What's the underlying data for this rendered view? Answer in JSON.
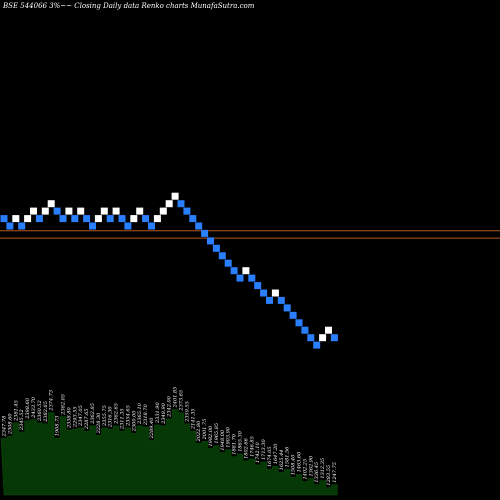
{
  "title": "BSE 544066  3%~~  Closing Daily data  Renko  charts MunafaSutra.com",
  "colors": {
    "background": "#000000",
    "up": "#ffffff",
    "down": "#2a7fff",
    "level": "#b5561e",
    "volume": "#063806"
  },
  "chart_data": {
    "type": "renko",
    "y_range": [
      1247,
      2600
    ],
    "levels": [
      2305,
      2265
    ],
    "bricks": [
      {
        "dir": "down",
        "close": 2370
      },
      {
        "dir": "down",
        "close": 2330
      },
      {
        "dir": "up",
        "close": 2370
      },
      {
        "dir": "down",
        "close": 2330
      },
      {
        "dir": "up",
        "close": 2370
      },
      {
        "dir": "up",
        "close": 2410
      },
      {
        "dir": "down",
        "close": 2370
      },
      {
        "dir": "up",
        "close": 2410
      },
      {
        "dir": "up",
        "close": 2450
      },
      {
        "dir": "down",
        "close": 2410
      },
      {
        "dir": "down",
        "close": 2370
      },
      {
        "dir": "up",
        "close": 2410
      },
      {
        "dir": "down",
        "close": 2370
      },
      {
        "dir": "up",
        "close": 2410
      },
      {
        "dir": "down",
        "close": 2370
      },
      {
        "dir": "down",
        "close": 2330
      },
      {
        "dir": "up",
        "close": 2370
      },
      {
        "dir": "up",
        "close": 2410
      },
      {
        "dir": "down",
        "close": 2370
      },
      {
        "dir": "up",
        "close": 2410
      },
      {
        "dir": "down",
        "close": 2370
      },
      {
        "dir": "down",
        "close": 2330
      },
      {
        "dir": "up",
        "close": 2370
      },
      {
        "dir": "up",
        "close": 2410
      },
      {
        "dir": "down",
        "close": 2370
      },
      {
        "dir": "down",
        "close": 2330
      },
      {
        "dir": "up",
        "close": 2370
      },
      {
        "dir": "up",
        "close": 2410
      },
      {
        "dir": "up",
        "close": 2450
      },
      {
        "dir": "up",
        "close": 2490
      },
      {
        "dir": "down",
        "close": 2450
      },
      {
        "dir": "down",
        "close": 2410
      },
      {
        "dir": "down",
        "close": 2370
      },
      {
        "dir": "down",
        "close": 2330
      },
      {
        "dir": "down",
        "close": 2290
      },
      {
        "dir": "down",
        "close": 2250
      },
      {
        "dir": "down",
        "close": 2210
      },
      {
        "dir": "down",
        "close": 2170
      },
      {
        "dir": "down",
        "close": 2130
      },
      {
        "dir": "down",
        "close": 2090
      },
      {
        "dir": "down",
        "close": 2050
      },
      {
        "dir": "up",
        "close": 2090
      },
      {
        "dir": "down",
        "close": 2050
      },
      {
        "dir": "down",
        "close": 2010
      },
      {
        "dir": "down",
        "close": 1970
      },
      {
        "dir": "down",
        "close": 1930
      },
      {
        "dir": "up",
        "close": 1970
      },
      {
        "dir": "down",
        "close": 1930
      },
      {
        "dir": "down",
        "close": 1890
      },
      {
        "dir": "down",
        "close": 1850
      },
      {
        "dir": "down",
        "close": 1810
      },
      {
        "dir": "down",
        "close": 1770
      },
      {
        "dir": "down",
        "close": 1730
      },
      {
        "dir": "down",
        "close": 1690
      },
      {
        "dir": "up",
        "close": 1730
      },
      {
        "dir": "up",
        "close": 1770
      },
      {
        "dir": "down",
        "close": 1730
      }
    ],
    "brick_labels": [
      "2347.78",
      "2308.60",
      "2381.45",
      "2345.52",
      "2398.60",
      "2433.70",
      "2360.52",
      "2382.65",
      "2374.73",
      "1908.73",
      "2382.05",
      "2338.80",
      "2293.55",
      "2347.05",
      "2287.65",
      "2362.85",
      "2228.30",
      "2355.75",
      "2316.30",
      "2362.65",
      "2311.35",
      "2354.65",
      "2300.00",
      "2365.10",
      "2318.70",
      "2289.40",
      "2331.90",
      "2348.90",
      "2342.00",
      "2401.85",
      "2373.65",
      "2359.55",
      "2141.35",
      "2022.80",
      "2001.75",
      "1982.00",
      "1965.85",
      "1948.00",
      "1903.90",
      "1881.70",
      "1865.30",
      "1802.66",
      "1746.85",
      "1742.10",
      "1713.30",
      "1674.05",
      "1647.20",
      "1625.44",
      "1581.56",
      "1508.40",
      "1463.60",
      "1402.25",
      "1362.90",
      "1336.45",
      "1312.35",
      "1283.55",
      "1247.75"
    ],
    "volume_rel": [
      0.55,
      0.62,
      0.7,
      0.66,
      0.72,
      0.78,
      0.7,
      0.74,
      0.8,
      0.6,
      0.76,
      0.68,
      0.64,
      0.7,
      0.62,
      0.72,
      0.58,
      0.7,
      0.64,
      0.72,
      0.62,
      0.7,
      0.6,
      0.72,
      0.66,
      0.58,
      0.68,
      0.72,
      0.74,
      0.88,
      0.8,
      0.74,
      0.62,
      0.55,
      0.52,
      0.5,
      0.48,
      0.46,
      0.44,
      0.42,
      0.4,
      0.38,
      0.35,
      0.34,
      0.32,
      0.3,
      0.28,
      0.27,
      0.25,
      0.22,
      0.2,
      0.18,
      0.16,
      0.15,
      0.14,
      0.12,
      0.1
    ]
  }
}
